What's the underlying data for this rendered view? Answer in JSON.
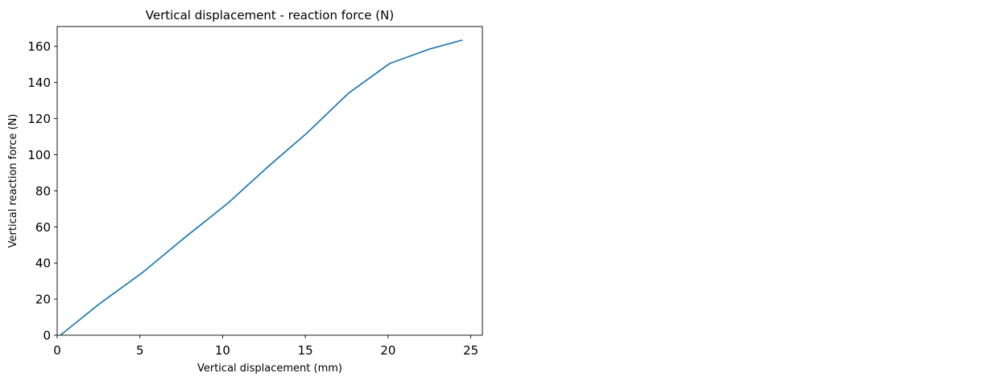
{
  "chart_data": {
    "type": "line",
    "title": "Vertical displacement - reaction force (N)",
    "xlabel": "Vertical displacement (mm)",
    "ylabel": "Vertical reaction force (N)",
    "xlim": [
      0,
      25.7
    ],
    "ylim": [
      0,
      171
    ],
    "xticks": [
      0,
      5,
      10,
      15,
      20,
      25
    ],
    "yticks": [
      0,
      20,
      40,
      60,
      80,
      100,
      120,
      140,
      160
    ],
    "grid": false,
    "series": [
      {
        "color": "#1f77b4",
        "x": [
          0.2,
          2.5,
          5.2,
          7.7,
          10.3,
          12.7,
          15.1,
          17.6,
          20.1,
          22.5,
          24.5
        ],
        "y": [
          0,
          17,
          35,
          54,
          73,
          93,
          112,
          134,
          150.5,
          158.5,
          163.5
        ]
      }
    ]
  }
}
